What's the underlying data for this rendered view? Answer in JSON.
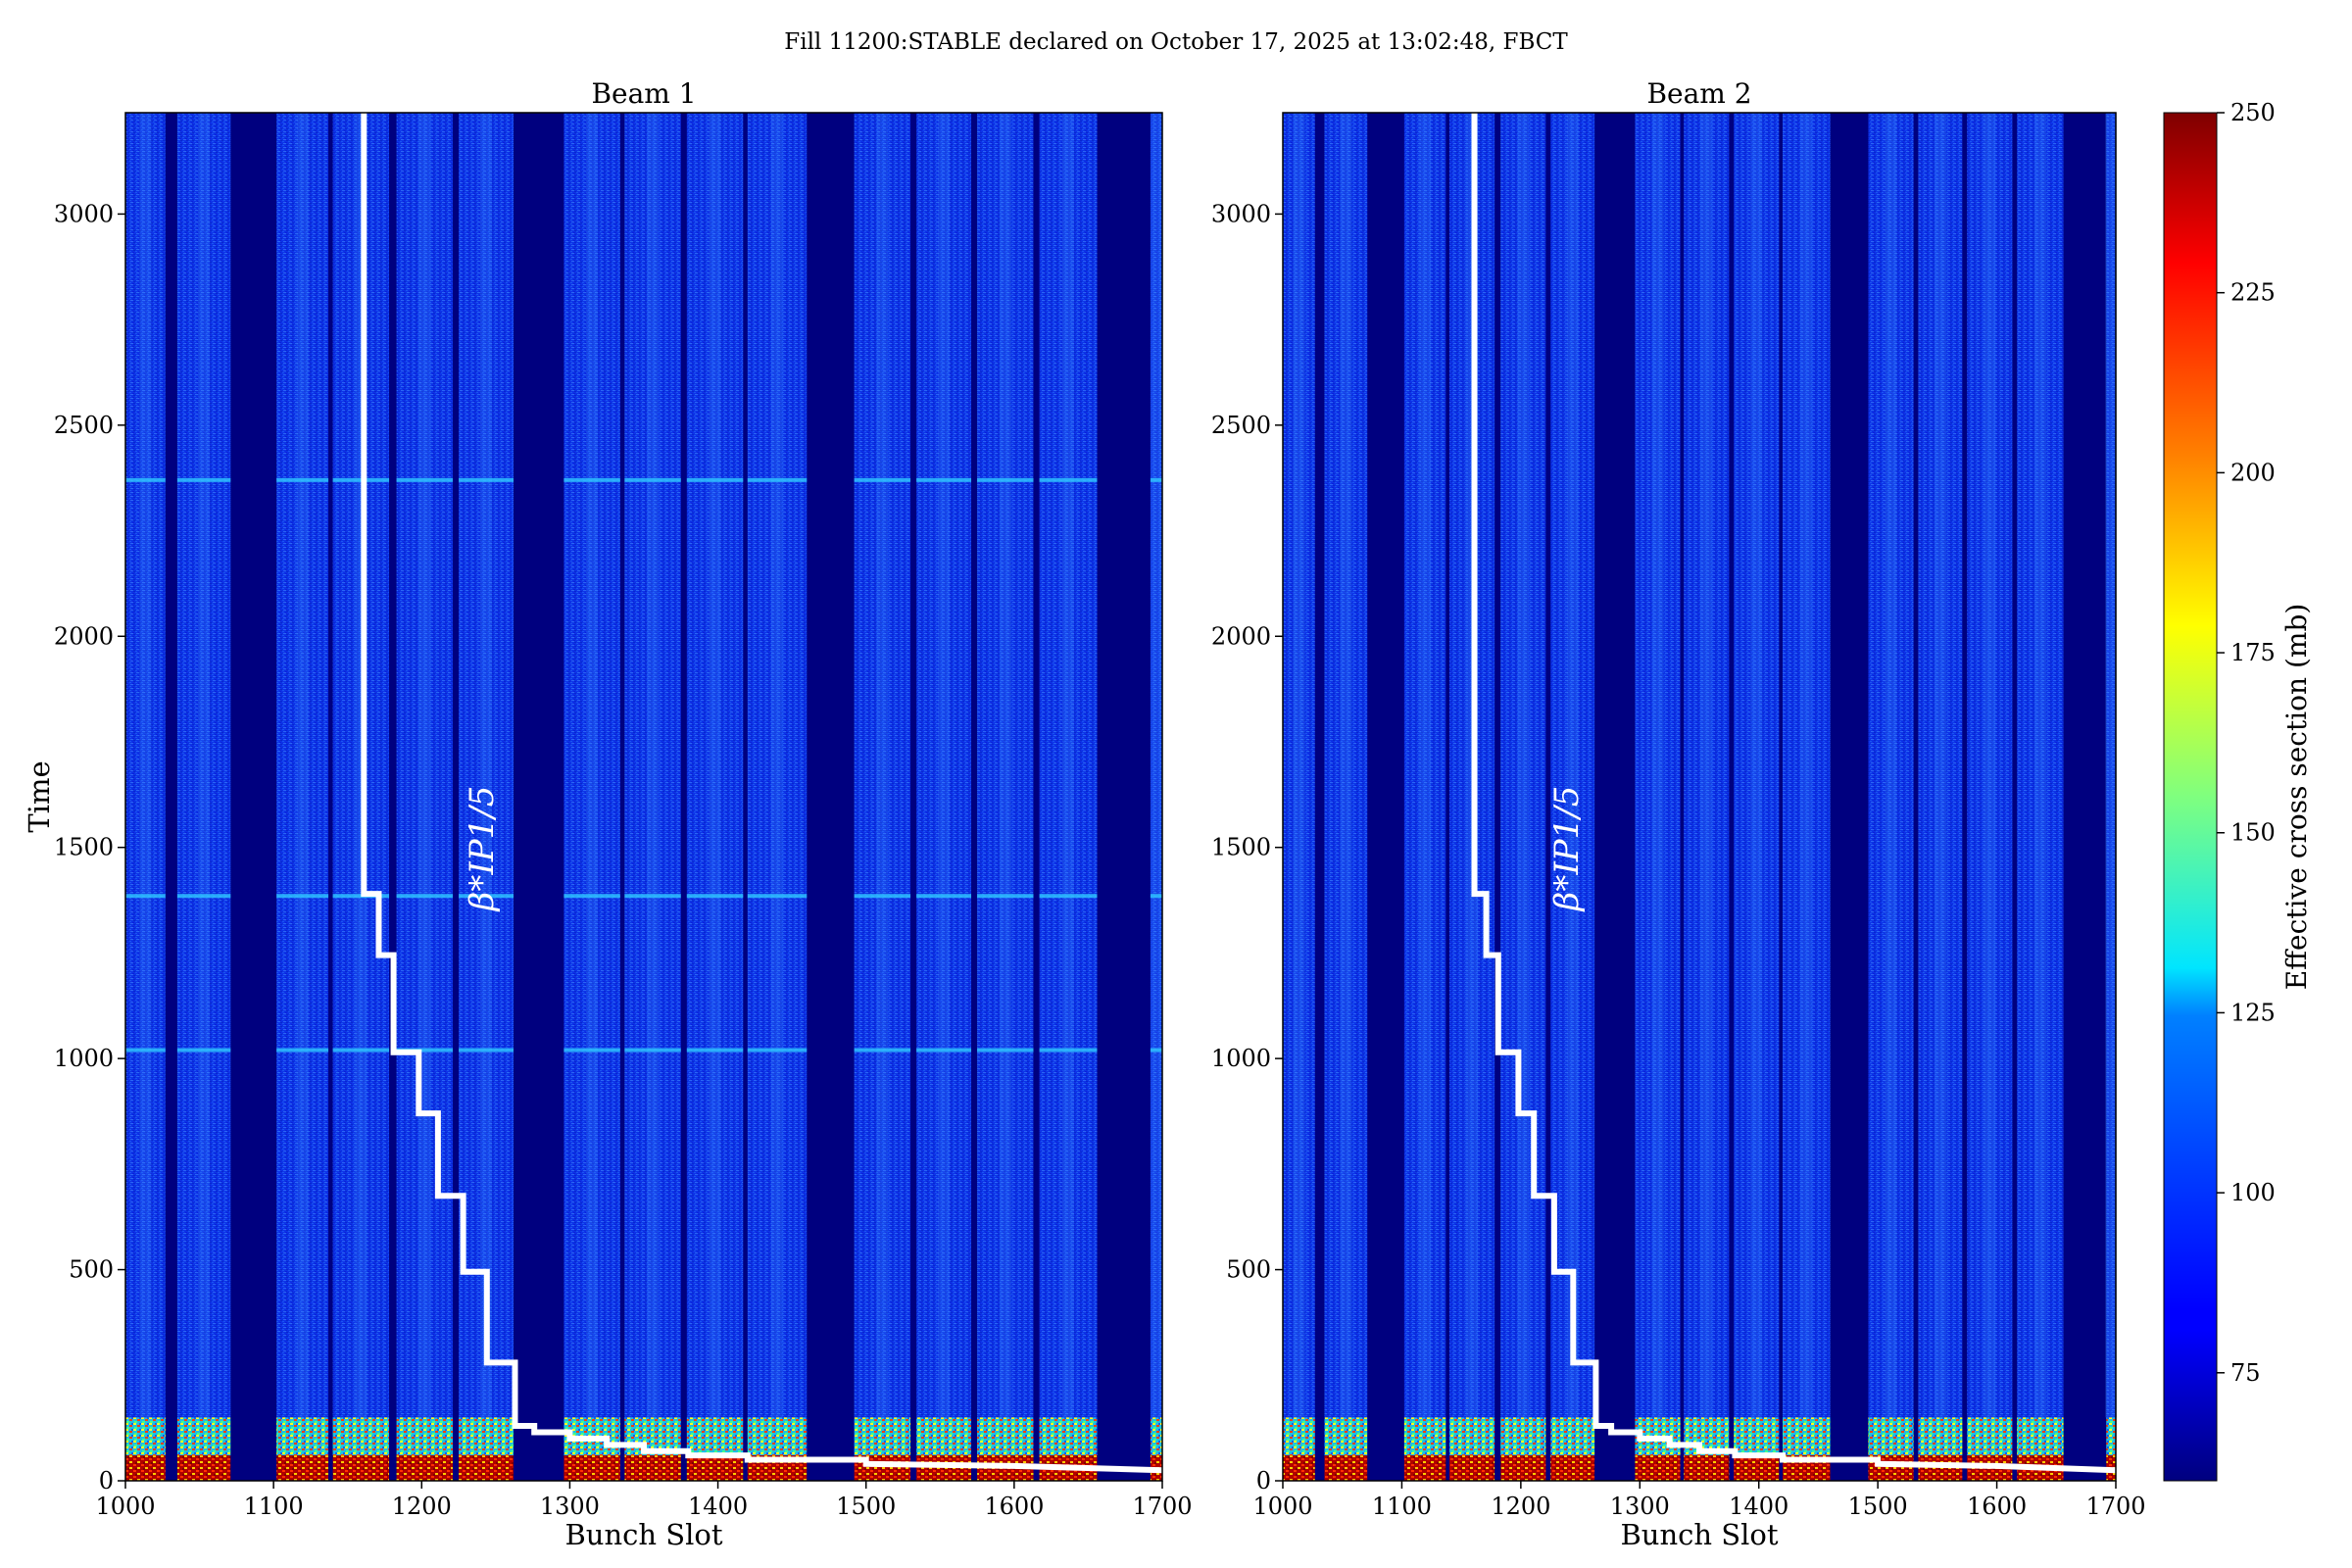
{
  "figure": {
    "suptitle": "Fill 11200:STABLE declared on October 17, 2025 at 13:02:48, FBCT"
  },
  "colors": {
    "background_empty": "#00007f",
    "base": "#0b2fe6",
    "overlay_line": "#ffffff"
  },
  "chart_data": [
    {
      "type": "heatmap",
      "title": "Beam 1",
      "xlabel": "Bunch Slot",
      "ylabel": "Time",
      "xlim": [
        1000,
        1700
      ],
      "ylim": [
        0,
        3240
      ],
      "xticks": [
        1000,
        1100,
        1200,
        1300,
        1400,
        1500,
        1600,
        1700
      ],
      "yticks": [
        0,
        500,
        1000,
        1500,
        2000,
        2500,
        3000
      ],
      "grid": false,
      "filled_trains_x": [
        [
          1000,
          1027
        ],
        [
          1035,
          1071
        ],
        [
          1102,
          1137
        ],
        [
          1140,
          1178
        ],
        [
          1183,
          1221
        ],
        [
          1225,
          1262
        ],
        [
          1296,
          1334
        ],
        [
          1337,
          1375
        ],
        [
          1379,
          1417
        ],
        [
          1420,
          1460
        ],
        [
          1492,
          1530
        ],
        [
          1534,
          1571
        ],
        [
          1575,
          1613
        ],
        [
          1617,
          1656
        ],
        [
          1692,
          1700
        ]
      ],
      "colored_band_time": [
        0,
        150
      ],
      "enhanced_rows_time": [
        2370,
        1385,
        1020
      ],
      "beta_star_step_x": [
        1161,
        1161,
        1171,
        1171,
        1181,
        1181,
        1198,
        1198,
        1211,
        1211,
        1228,
        1228,
        1244,
        1244,
        1263,
        1263,
        1276,
        1276,
        1300,
        1300,
        1325,
        1325,
        1350,
        1350,
        1380,
        1380,
        1420,
        1420,
        1500,
        1500,
        1600,
        1700
      ],
      "beta_star_step_t": [
        3240,
        1390,
        1390,
        1245,
        1245,
        1015,
        1015,
        870,
        870,
        675,
        675,
        495,
        495,
        280,
        280,
        130,
        130,
        115,
        115,
        100,
        100,
        85,
        85,
        70,
        70,
        60,
        60,
        50,
        50,
        40,
        35,
        25
      ],
      "annotation": "β*IP1/5"
    },
    {
      "type": "heatmap",
      "title": "Beam 2",
      "xlabel": "Bunch Slot",
      "ylabel": "",
      "xlim": [
        1000,
        1700
      ],
      "ylim": [
        0,
        3240
      ],
      "xticks": [
        1000,
        1100,
        1200,
        1300,
        1400,
        1500,
        1600,
        1700
      ],
      "yticks": [
        0,
        500,
        1000,
        1500,
        2000,
        2500,
        3000
      ],
      "grid": false,
      "filled_trains_x": [
        [
          1000,
          1027
        ],
        [
          1035,
          1071
        ],
        [
          1102,
          1137
        ],
        [
          1140,
          1178
        ],
        [
          1183,
          1221
        ],
        [
          1225,
          1262
        ],
        [
          1296,
          1334
        ],
        [
          1337,
          1375
        ],
        [
          1379,
          1417
        ],
        [
          1420,
          1460
        ],
        [
          1492,
          1530
        ],
        [
          1534,
          1571
        ],
        [
          1575,
          1613
        ],
        [
          1617,
          1656
        ],
        [
          1692,
          1700
        ]
      ],
      "colored_band_time": [
        0,
        150
      ],
      "enhanced_rows_time": [],
      "beta_star_step_x": [
        1161,
        1161,
        1171,
        1171,
        1181,
        1181,
        1198,
        1198,
        1211,
        1211,
        1228,
        1228,
        1244,
        1244,
        1263,
        1263,
        1276,
        1276,
        1300,
        1300,
        1325,
        1325,
        1350,
        1350,
        1380,
        1380,
        1420,
        1420,
        1500,
        1500,
        1600,
        1700
      ],
      "beta_star_step_t": [
        3240,
        1390,
        1390,
        1245,
        1245,
        1015,
        1015,
        870,
        870,
        675,
        675,
        495,
        495,
        280,
        280,
        130,
        130,
        115,
        115,
        100,
        100,
        85,
        85,
        70,
        70,
        60,
        60,
        50,
        50,
        40,
        35,
        25
      ],
      "annotation": "β*IP1/5"
    }
  ],
  "colorbar": {
    "label": "Effective cross section (mb)",
    "range": [
      60,
      250
    ],
    "ticks": [
      75,
      100,
      125,
      150,
      175,
      200,
      225,
      250
    ],
    "colormap": "jet"
  }
}
